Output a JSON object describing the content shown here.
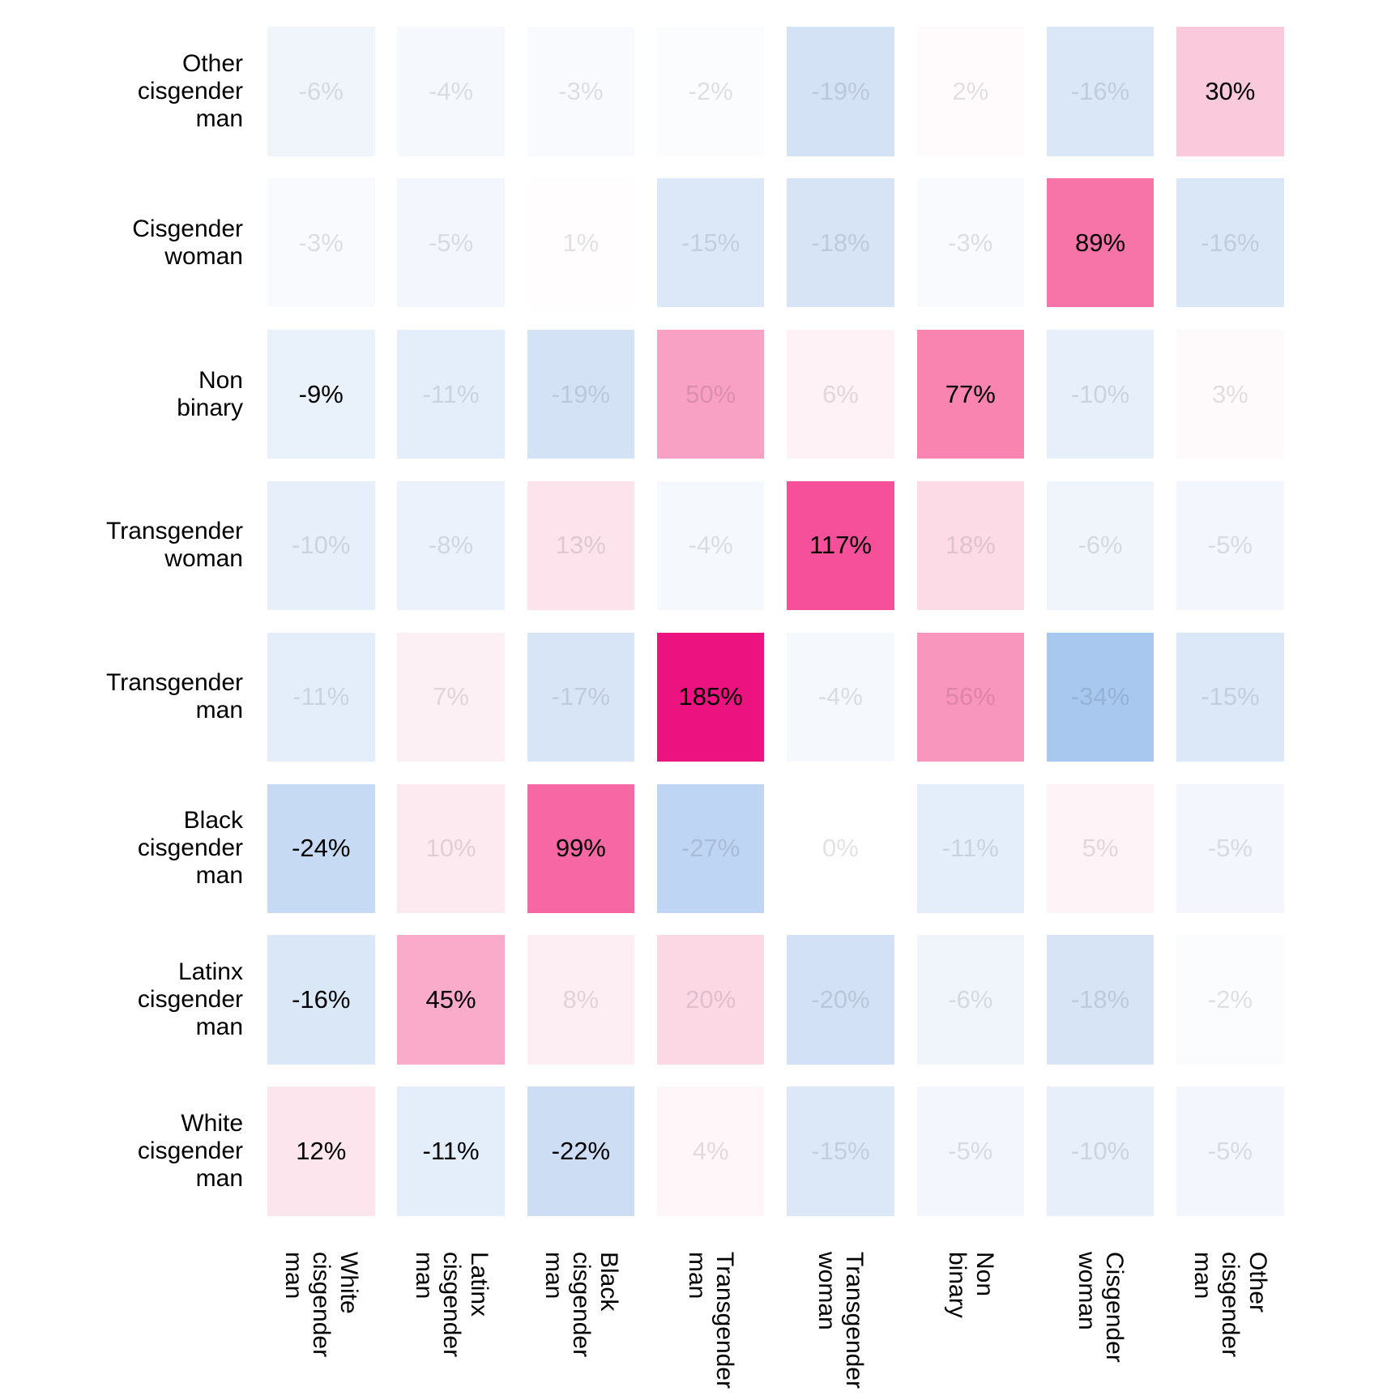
{
  "chart_data": {
    "type": "heatmap",
    "title": "",
    "x_axis_label": "",
    "y_axis_label": "",
    "x_categories": [
      "White cisgender man",
      "Latinx cisgender man",
      "Black cisgender man",
      "Transgender man",
      "Transgender woman",
      "Non binary",
      "Cisgender woman",
      "Other cisgender man"
    ],
    "y_categories": [
      "Other cisgender man",
      "Cisgender woman",
      "Non binary",
      "Transgender woman",
      "Transgender man",
      "Black cisgender man",
      "Latinx cisgender man",
      "White cisgender man"
    ],
    "value_suffix": "%",
    "values_percent": [
      [
        -6,
        -4,
        -3,
        -2,
        -19,
        2,
        -16,
        30
      ],
      [
        -3,
        -5,
        1,
        -15,
        -18,
        -3,
        89,
        -16
      ],
      [
        -9,
        -11,
        -19,
        50,
        6,
        77,
        -10,
        3
      ],
      [
        -10,
        -8,
        13,
        -4,
        117,
        18,
        -6,
        -5
      ],
      [
        -11,
        7,
        -17,
        185,
        -4,
        56,
        -34,
        -15
      ],
      [
        -24,
        10,
        99,
        -27,
        0,
        -11,
        5,
        -5
      ],
      [
        -16,
        45,
        8,
        20,
        -20,
        -6,
        -18,
        -2
      ],
      [
        12,
        -11,
        -22,
        4,
        -15,
        -5,
        -10,
        -5
      ]
    ],
    "emphasized_cells": [
      [
        0,
        0,
        0,
        0,
        0,
        0,
        0,
        1
      ],
      [
        0,
        0,
        0,
        0,
        0,
        0,
        1,
        0
      ],
      [
        1,
        0,
        0,
        0,
        0,
        1,
        0,
        0
      ],
      [
        0,
        0,
        0,
        0,
        1,
        0,
        0,
        0
      ],
      [
        0,
        0,
        0,
        1,
        0,
        0,
        0,
        0
      ],
      [
        1,
        0,
        1,
        0,
        0,
        0,
        0,
        0
      ],
      [
        1,
        1,
        0,
        0,
        0,
        0,
        0,
        0
      ],
      [
        1,
        1,
        1,
        0,
        0,
        0,
        0,
        0
      ]
    ],
    "legend": "none",
    "grid": "off",
    "value_range": [
      -34,
      185
    ],
    "colors": {
      "background": "#ffffff",
      "text_emphasized": "#000000",
      "text_muted": "rgba(0,0,0,0.115)",
      "colormap_positive_stops": [
        [
          0,
          "#ffffff"
        ],
        [
          13,
          "#fce3ec"
        ],
        [
          30,
          "#fbc9dc"
        ],
        [
          45,
          "#f9abc9"
        ],
        [
          56,
          "#f996bd"
        ],
        [
          77,
          "#f884af"
        ],
        [
          117,
          "#f6509a"
        ],
        [
          185,
          "#ec1280"
        ]
      ],
      "colormap_negative_stops": [
        [
          0,
          "#ffffff"
        ],
        [
          -10,
          "#e6effa"
        ],
        [
          -20,
          "#d2e1f5"
        ],
        [
          -34,
          "#a9c8f0"
        ]
      ]
    }
  }
}
